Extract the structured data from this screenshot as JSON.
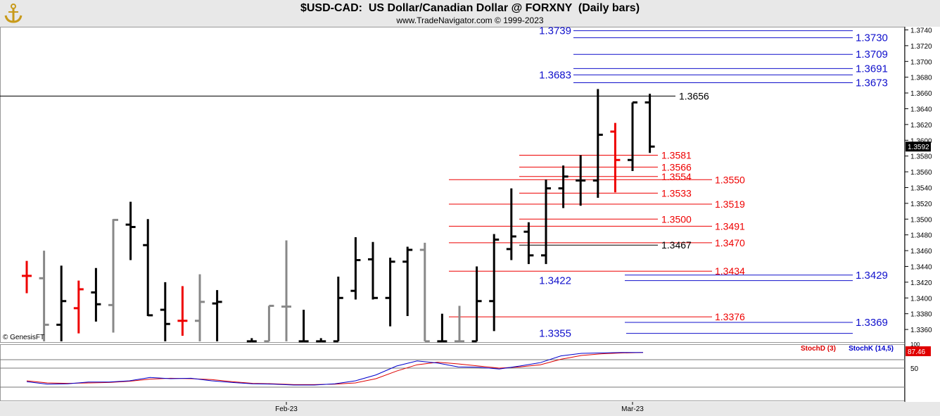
{
  "header": {
    "title": "$USD-CAD:  US Dollar/Canadian Dollar @ FORXNY  (Daily bars)",
    "subtitle": "www.TradeNavigator.com © 1999-2023"
  },
  "copyright": "© GenesisFT",
  "colors": {
    "up_bar": "#000000",
    "down_bar": "#000000",
    "gray_bar": "#888888",
    "signal_bar": "#ee0000",
    "blue_level": "#1010cc",
    "red_level": "#ee0000",
    "black_level": "#000000",
    "stoch_d": "#dd0000",
    "stoch_k": "#0000cc"
  },
  "chart_data": {
    "type": "bar",
    "price_axis": {
      "ylim": [
        1.3344,
        1.3744
      ],
      "ticks": [
        "1.3740",
        "1.3720",
        "1.3700",
        "1.3680",
        "1.3660",
        "1.3640",
        "1.3620",
        "1.3600",
        "1.3580",
        "1.3560",
        "1.3540",
        "1.3520",
        "1.3500",
        "1.3480",
        "1.3460",
        "1.3440",
        "1.3420",
        "1.3400",
        "1.3380",
        "1.3360"
      ],
      "last_price": "1.3592"
    },
    "x_labels": [
      {
        "label": "Feb-23",
        "index": 15
      },
      {
        "label": "Mar-23",
        "index": 35
      }
    ],
    "ohlc_bars": [
      {
        "i": 0,
        "o": 1.3428,
        "h": 1.3447,
        "l": 1.3406,
        "c": 1.3428,
        "color": "red"
      },
      {
        "i": 1,
        "o": 1.3425,
        "h": 1.346,
        "l": 1.3345,
        "c": 1.3366,
        "color": "gray"
      },
      {
        "i": 2,
        "o": 1.3366,
        "h": 1.3441,
        "l": 1.3345,
        "c": 1.3396,
        "color": "black"
      },
      {
        "i": 3,
        "o": 1.3387,
        "h": 1.3422,
        "l": 1.3355,
        "c": 1.3411,
        "color": "red"
      },
      {
        "i": 4,
        "o": 1.3407,
        "h": 1.3438,
        "l": 1.337,
        "c": 1.3392,
        "color": "black"
      },
      {
        "i": 5,
        "o": 1.3391,
        "h": 1.35,
        "l": 1.3356,
        "c": 1.3499,
        "color": "gray"
      },
      {
        "i": 6,
        "o": 1.3493,
        "h": 1.3522,
        "l": 1.3448,
        "c": 1.349,
        "color": "black"
      },
      {
        "i": 7,
        "o": 1.3467,
        "h": 1.35,
        "l": 1.3377,
        "c": 1.3378,
        "color": "black"
      },
      {
        "i": 8,
        "o": 1.3385,
        "h": 1.342,
        "l": 1.3345,
        "c": 1.3367,
        "color": "black"
      },
      {
        "i": 9,
        "o": 1.3371,
        "h": 1.3415,
        "l": 1.3352,
        "c": 1.3371,
        "color": "red"
      },
      {
        "i": 10,
        "o": 1.3371,
        "h": 1.343,
        "l": 1.3345,
        "c": 1.3395,
        "color": "gray"
      },
      {
        "i": 11,
        "o": 1.3393,
        "h": 1.341,
        "l": 1.3345,
        "c": 1.3395,
        "color": "black"
      },
      {
        "i": 13,
        "o": 1.3345,
        "h": 1.3349,
        "l": 1.3345,
        "c": 1.3345,
        "color": "black"
      },
      {
        "i": 14,
        "o": 1.3345,
        "h": 1.339,
        "l": 1.3345,
        "c": 1.339,
        "color": "gray"
      },
      {
        "i": 15,
        "o": 1.3389,
        "h": 1.3473,
        "l": 1.3345,
        "c": 1.3389,
        "color": "gray"
      },
      {
        "i": 16,
        "o": 1.3345,
        "h": 1.3385,
        "l": 1.3345,
        "c": 1.3345,
        "color": "black"
      },
      {
        "i": 17,
        "o": 1.3345,
        "h": 1.3349,
        "l": 1.3345,
        "c": 1.3345,
        "color": "black"
      },
      {
        "i": 18,
        "o": 1.3345,
        "h": 1.3427,
        "l": 1.3345,
        "c": 1.34,
        "color": "black"
      },
      {
        "i": 19,
        "o": 1.3409,
        "h": 1.3477,
        "l": 1.3398,
        "c": 1.3448,
        "color": "black"
      },
      {
        "i": 20,
        "o": 1.3449,
        "h": 1.3471,
        "l": 1.3398,
        "c": 1.34,
        "color": "black"
      },
      {
        "i": 21,
        "o": 1.34,
        "h": 1.3451,
        "l": 1.3364,
        "c": 1.3446,
        "color": "black"
      },
      {
        "i": 22,
        "o": 1.3446,
        "h": 1.3465,
        "l": 1.3377,
        "c": 1.3461,
        "color": "black"
      },
      {
        "i": 23,
        "o": 1.3461,
        "h": 1.347,
        "l": 1.3345,
        "c": 1.3345,
        "color": "gray"
      },
      {
        "i": 24,
        "o": 1.3345,
        "h": 1.338,
        "l": 1.3345,
        "c": 1.3345,
        "color": "black"
      },
      {
        "i": 25,
        "o": 1.3345,
        "h": 1.339,
        "l": 1.3345,
        "c": 1.3345,
        "color": "gray"
      },
      {
        "i": 26,
        "o": 1.3345,
        "h": 1.344,
        "l": 1.3345,
        "c": 1.3396,
        "color": "black"
      },
      {
        "i": 27,
        "o": 1.3396,
        "h": 1.3481,
        "l": 1.3358,
        "c": 1.3474,
        "color": "black"
      },
      {
        "i": 28,
        "o": 1.3462,
        "h": 1.3539,
        "l": 1.3448,
        "c": 1.3478,
        "color": "black"
      },
      {
        "i": 29,
        "o": 1.3484,
        "h": 1.3496,
        "l": 1.3443,
        "c": 1.3454,
        "color": "black"
      },
      {
        "i": 30,
        "o": 1.3454,
        "h": 1.355,
        "l": 1.3443,
        "c": 1.3539,
        "color": "black"
      },
      {
        "i": 31,
        "o": 1.3539,
        "h": 1.3568,
        "l": 1.3514,
        "c": 1.3554,
        "color": "black"
      },
      {
        "i": 32,
        "o": 1.3549,
        "h": 1.3581,
        "l": 1.3517,
        "c": 1.3549,
        "color": "black"
      },
      {
        "i": 33,
        "o": 1.3549,
        "h": 1.3665,
        "l": 1.3527,
        "c": 1.3607,
        "color": "black"
      },
      {
        "i": 34,
        "o": 1.3611,
        "h": 1.3622,
        "l": 1.3534,
        "c": 1.3575,
        "color": "red"
      },
      {
        "i": 35,
        "o": 1.3575,
        "h": 1.3648,
        "l": 1.3561,
        "c": 1.3648,
        "color": "black"
      },
      {
        "i": 36,
        "o": 1.3648,
        "h": 1.3659,
        "l": 1.3584,
        "c": 1.3592,
        "color": "black"
      }
    ],
    "levels": [
      {
        "label": "1.3739",
        "value": 1.3739,
        "color": "blue",
        "label_side": "left"
      },
      {
        "label": "1.3730",
        "value": 1.373,
        "color": "blue",
        "label_side": "right"
      },
      {
        "label": "1.3709",
        "value": 1.3709,
        "color": "blue",
        "label_side": "right"
      },
      {
        "label": "1.3691",
        "value": 1.3691,
        "color": "blue",
        "label_side": "right"
      },
      {
        "label": "1.3683",
        "value": 1.3683,
        "color": "blue",
        "label_side": "left"
      },
      {
        "label": "1.3673",
        "value": 1.3673,
        "color": "blue",
        "label_side": "right"
      },
      {
        "label": "1.3656",
        "value": 1.3656,
        "color": "black",
        "label_side": "mid"
      },
      {
        "label": "1.3581",
        "value": 1.3581,
        "color": "red",
        "label_side": "mid"
      },
      {
        "label": "1.3566",
        "value": 1.3566,
        "color": "red",
        "label_side": "mid"
      },
      {
        "label": "1.3554",
        "value": 1.3554,
        "color": "red",
        "label_side": "mid"
      },
      {
        "label": "1.3550",
        "value": 1.355,
        "color": "red",
        "label_side": "right2"
      },
      {
        "label": "1.3533",
        "value": 1.3533,
        "color": "red",
        "label_side": "mid"
      },
      {
        "label": "1.3519",
        "value": 1.3519,
        "color": "red",
        "label_side": "right2"
      },
      {
        "label": "1.3500",
        "value": 1.35,
        "color": "red",
        "label_side": "mid"
      },
      {
        "label": "1.3491",
        "value": 1.3491,
        "color": "red",
        "label_side": "right2"
      },
      {
        "label": "1.3470",
        "value": 1.347,
        "color": "red",
        "label_side": "right2"
      },
      {
        "label": "1.3467",
        "value": 1.3467,
        "color": "black",
        "label_side": "mid"
      },
      {
        "label": "1.3434",
        "value": 1.3434,
        "color": "red",
        "label_side": "right2"
      },
      {
        "label": "1.3429",
        "value": 1.3429,
        "color": "blue",
        "label_side": "right"
      },
      {
        "label": "1.3422",
        "value": 1.3422,
        "color": "blue",
        "label_side": "left"
      },
      {
        "label": "1.3376",
        "value": 1.3376,
        "color": "red",
        "label_side": "right2"
      },
      {
        "label": "1.3369",
        "value": 1.3369,
        "color": "blue",
        "label_side": "right"
      },
      {
        "label": "1.3355",
        "value": 1.3355,
        "color": "blue",
        "label_side": "left"
      }
    ],
    "stochastic": {
      "labels": {
        "d": "StochD (3)",
        "k": "StochK (14,5)",
        "last": "87.46",
        "tick_100": "100",
        "tick_50": "50"
      },
      "k": [
        18,
        12,
        13,
        17,
        17,
        20,
        28,
        25,
        26,
        20,
        16,
        13,
        12,
        10,
        10,
        13,
        20,
        34,
        55,
        67,
        62,
        53,
        52,
        48,
        55,
        63,
        79,
        85,
        86,
        87,
        87
      ],
      "d": [
        20,
        15,
        14,
        15,
        16,
        19,
        24,
        26,
        25,
        23,
        18,
        14,
        13,
        11,
        11,
        12,
        15,
        25,
        43,
        58,
        64,
        60,
        55,
        50,
        53,
        58,
        71,
        80,
        84,
        86,
        87
      ]
    }
  }
}
